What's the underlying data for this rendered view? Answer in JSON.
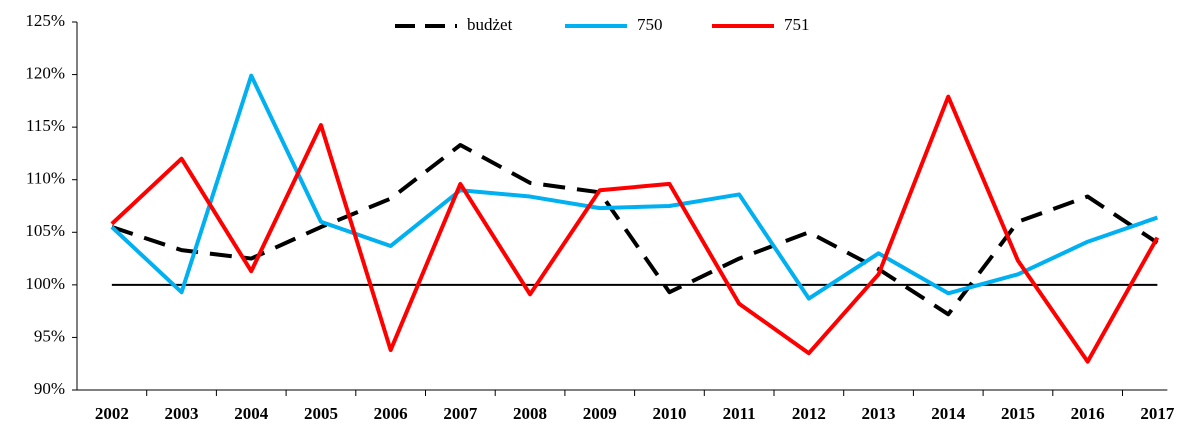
{
  "chart_data": {
    "type": "line",
    "categories": [
      "2002",
      "2003",
      "2004",
      "2005",
      "2006",
      "2007",
      "2008",
      "2009",
      "2010",
      "2011",
      "2012",
      "2013",
      "2014",
      "2015",
      "2016",
      "2017"
    ],
    "series": [
      {
        "name": "budżet",
        "color": "#000000",
        "dash": true,
        "values": [
          105.5,
          103.3,
          102.5,
          105.5,
          108.2,
          113.3,
          109.7,
          108.8,
          99.3,
          102.5,
          105.0,
          101.5,
          97.2,
          106.0,
          108.4,
          104.0
        ]
      },
      {
        "name": "750",
        "color": "#00b0f0",
        "values": [
          105.5,
          99.3,
          119.9,
          106.0,
          103.7,
          109.0,
          108.4,
          107.3,
          107.5,
          108.6,
          98.7,
          103.0,
          99.2,
          101.0,
          104.1,
          106.4
        ]
      },
      {
        "name": "751",
        "color": "#ff0000",
        "values": [
          105.8,
          112.0,
          101.3,
          115.2,
          93.8,
          109.6,
          99.1,
          109.0,
          109.6,
          98.2,
          93.5,
          101.0,
          117.9,
          102.3,
          92.7,
          104.5
        ]
      }
    ],
    "ylim": [
      90,
      125
    ],
    "yticks": [
      {
        "value": 90,
        "label": "90%"
      },
      {
        "value": 95,
        "label": "95%"
      },
      {
        "value": 100,
        "label": "100%"
      },
      {
        "value": 105,
        "label": "105%"
      },
      {
        "value": 110,
        "label": "110%"
      },
      {
        "value": 115,
        "label": "115%"
      },
      {
        "value": 120,
        "label": "120%"
      },
      {
        "value": 125,
        "label": "125%"
      }
    ],
    "hline": 100,
    "legend": "top"
  }
}
